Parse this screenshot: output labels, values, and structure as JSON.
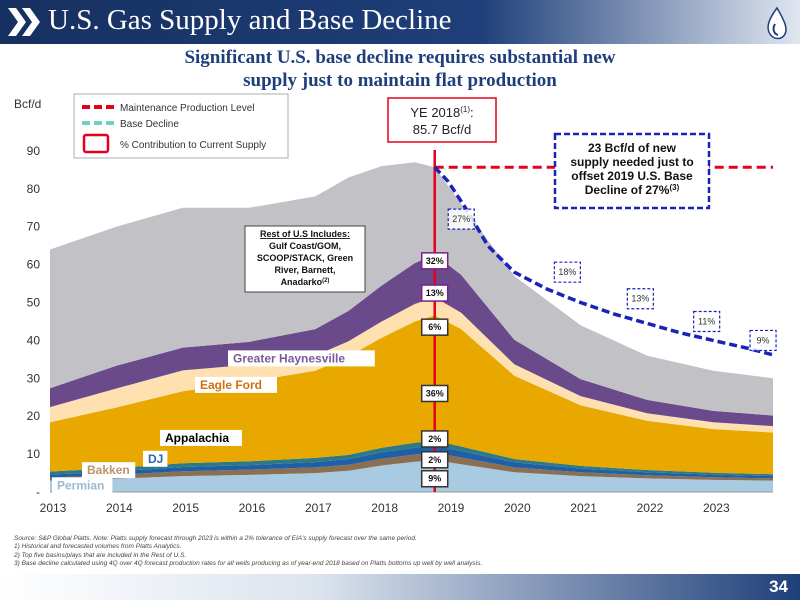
{
  "header": {
    "title": "U.S. Gas Supply and Base Decline",
    "subtitle_lines": [
      "Significant U.S. base decline requires substantial new",
      "supply just to maintain flat production"
    ]
  },
  "chart_data": {
    "type": "area",
    "ylabel": "Bcf/d",
    "ylim": [
      0,
      95
    ],
    "yticks": [
      "-",
      "10",
      "20",
      "30",
      "40",
      "50",
      "60",
      "70",
      "80",
      "90"
    ],
    "x_ticks": [
      "2013",
      "2014",
      "2015",
      "2016",
      "2017",
      "2018",
      "2019",
      "2020",
      "2021",
      "2022",
      "2023"
    ],
    "x": [
      2013.0,
      2014.0,
      2015.0,
      2016.0,
      2017.0,
      2017.5,
      2018.0,
      2018.5,
      2018.8,
      2019.2,
      2020.0,
      2021.0,
      2022.0,
      2023.0,
      2023.9
    ],
    "x_max": 2023.9,
    "series": [
      {
        "name": "Permian",
        "color": "#a9cbe2",
        "label_color": "#9db8ce",
        "label_side": "left",
        "values": [
          3.0,
          3.5,
          4.2,
          4.5,
          5.0,
          5.6,
          7.0,
          8.0,
          8.4,
          7.3,
          5.2,
          4.2,
          3.6,
          3.2,
          3.0
        ]
      },
      {
        "name": "Bakken",
        "color": "#8b6f52",
        "label_color": "#b8956a",
        "label_side": "left",
        "values": [
          0.8,
          1.0,
          1.3,
          1.4,
          1.5,
          1.6,
          1.8,
          1.9,
          2.0,
          1.8,
          1.3,
          1.0,
          0.8,
          0.7,
          0.6
        ]
      },
      {
        "name": "DJ",
        "color": "#1f5fa6",
        "label_color": "#2e63ae",
        "label_side": "left",
        "values": [
          0.8,
          0.9,
          1.1,
          1.2,
          1.4,
          1.5,
          1.7,
          1.8,
          1.9,
          1.7,
          1.3,
          1.0,
          0.8,
          0.7,
          0.6
        ]
      },
      {
        "name": "",
        "color": "#2d7a86",
        "values": [
          0.8,
          0.9,
          1.0,
          1.0,
          1.1,
          1.1,
          1.2,
          1.3,
          1.3,
          1.2,
          0.9,
          0.7,
          0.6,
          0.5,
          0.5
        ]
      },
      {
        "name": "Appalachia",
        "color": "#e9a800",
        "label_color": "#000000",
        "label_side": "left",
        "values": [
          13.0,
          16.0,
          19.0,
          21.0,
          23.0,
          26.0,
          29.0,
          32.0,
          33.0,
          31.0,
          22.0,
          16.0,
          13.0,
          11.5,
          11.0
        ]
      },
      {
        "name": "Eagle Ford",
        "color": "#ffe0b0",
        "label_color": "#d26f0a",
        "label_side": "left",
        "values": [
          4.0,
          5.0,
          5.5,
          4.5,
          4.0,
          4.0,
          4.3,
          4.6,
          4.8,
          4.3,
          3.0,
          2.4,
          2.0,
          1.8,
          1.7
        ]
      },
      {
        "name": "Greater Haynesville",
        "color": "#6b4a8c",
        "label_color": "#7a5a9a",
        "label_side": "left",
        "values": [
          5.0,
          6.0,
          6.0,
          6.0,
          7.0,
          8.0,
          9.5,
          10.8,
          11.3,
          10.0,
          6.5,
          4.5,
          3.5,
          3.0,
          2.8
        ]
      },
      {
        "name": "Rest of U.S",
        "color": "#c2c2c6",
        "values": [
          36.6,
          36.7,
          36.9,
          35.4,
          35.0,
          35.2,
          31.5,
          26.6,
          23.0,
          18.7,
          16.8,
          14.2,
          11.7,
          10.6,
          9.8
        ]
      }
    ],
    "maintenance_level": 85.7,
    "base_decline": {
      "x": [
        2018.8,
        2019.0,
        2019.3,
        2019.6,
        2020.0,
        2020.5,
        2021.0,
        2021.5,
        2022.0,
        2022.5,
        2023.0,
        2023.5,
        2023.9
      ],
      "values": [
        85.7,
        82.0,
        74.0,
        65.0,
        58.0,
        53.5,
        50.0,
        47.0,
        44.5,
        42.0,
        40.0,
        38.0,
        36.2
      ]
    },
    "yearly_contributions": [
      {
        "x": 2019.2,
        "label": "27%",
        "y": 72
      },
      {
        "x": 2020.8,
        "label": "18%",
        "y": 58
      },
      {
        "x": 2021.9,
        "label": "13%",
        "y": 51
      },
      {
        "x": 2022.9,
        "label": "11%",
        "y": 45
      },
      {
        "x": 2023.75,
        "label": "9%",
        "y": 40
      }
    ],
    "current_contributions": [
      {
        "label": "32%",
        "y": 61
      },
      {
        "label": "13%",
        "y": 52.5
      },
      {
        "label": "6%",
        "y": 43.5
      },
      {
        "label": "36%",
        "y": 26
      },
      {
        "label": "2%",
        "y": 14
      },
      {
        "label": "2%",
        "y": 8.5
      },
      {
        "label": "9%",
        "y": 3.5
      }
    ],
    "legend": {
      "items": [
        "Maintenance Production Level",
        "Base Decline",
        "% Contribution to Current Supply"
      ],
      "placement": "top-left"
    },
    "annotations": {
      "ye_line1": "YE 2018",
      "ye_sup": "(1)",
      "ye_colon": ":",
      "ye_line2": "85.7 Bcf/d",
      "callout_lines": [
        "23 Bcf/d of new",
        "supply needed just to",
        "offset 2019 U.S. Base",
        "Decline of 27%"
      ],
      "callout_sup": "(3)",
      "rest_title": "Rest of U.S Includes:",
      "rest_lines": [
        "Gulf Coast/GOM,",
        "SCOOP/STACK, Green",
        "River, Barnett,",
        "Anadarko"
      ],
      "rest_sup": "(2)"
    }
  },
  "notes": [
    "Source: S&P Global Platts. Note:  Platts supply forecast through 2023 is within a 2% tolerance of EIA's supply forecast over the same period.",
    "1)     Historical and forecasted volumes from Platts Analytics.",
    "2)     Top five basins/plays that are included in the Rest of U.S.",
    "3)     Base decline calculated using 4Q over 4Q forecast production rates for all wells producing as of year-end 2018 based on Platts bottoms up well by well analysis."
  ],
  "page_number": "34"
}
